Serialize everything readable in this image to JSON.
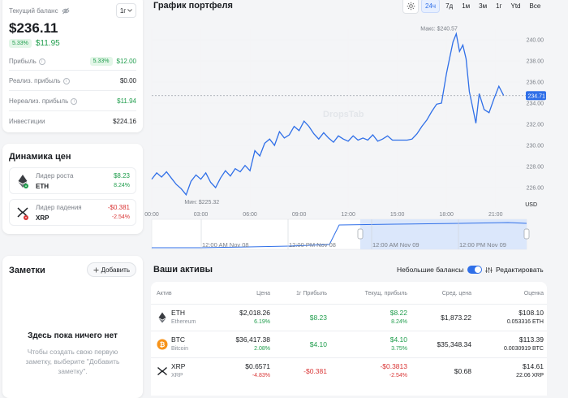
{
  "balance": {
    "label": "Текущий баланс",
    "period": "1г",
    "value": "$236.11",
    "change_pct": "5.33%",
    "change_abs": "$11.95",
    "rows": [
      {
        "label": "Прибыль",
        "pct": "5.33%",
        "value": "$12.00"
      },
      {
        "label": "Реализ. прибыль",
        "value": "$0.00"
      },
      {
        "label": "Нереализ. прибыль",
        "value": "$11.94"
      },
      {
        "label": "Инвестиции",
        "value": "$224.16"
      }
    ]
  },
  "dynamics": {
    "title": "Динамика цен",
    "gainer": {
      "label": "Лидер роста",
      "symbol": "ETH",
      "value": "$8.23",
      "pct": "8.24%"
    },
    "loser": {
      "label": "Лидер падения",
      "symbol": "XRP",
      "value": "-$0.381",
      "pct": "-2.54%"
    }
  },
  "notes": {
    "title": "Заметки",
    "add_label": "Добавить",
    "empty_title": "Здесь пока ничего нет",
    "empty_text": "Чтобы создать свою первую заметку, выберите \"Добавить заметку\"."
  },
  "chart": {
    "title": "График портфеля",
    "ranges": [
      "24ч",
      "7д",
      "1м",
      "3м",
      "1г",
      "Ytd",
      "Все"
    ],
    "active_range": "24ч",
    "max_label": "Макс: $240.57",
    "min_label": "Мин: $225.32",
    "current_label": "234.71",
    "watermark": "DropsTab",
    "unit": "USD",
    "nav_labels": [
      "12:00 AM Nov 08",
      "12:00 PM Nov 08",
      "12:00 AM Nov 09",
      "12:00 PM Nov 09"
    ]
  },
  "chart_data": {
    "type": "line",
    "title": "График портфеля",
    "ylabel": "USD",
    "ylim": [
      225,
      241
    ],
    "yticks": [
      "240.00",
      "238.00",
      "236.00",
      "234.00",
      "232.00",
      "230.00",
      "228.00",
      "226.00"
    ],
    "xticks": [
      "00:00",
      "03:00",
      "06:00",
      "09:00",
      "12:00",
      "15:00",
      "18:00",
      "21:00"
    ],
    "x_hours": [
      0,
      0.3,
      0.6,
      0.9,
      1.2,
      1.5,
      1.8,
      2.1,
      2.4,
      2.7,
      3.0,
      3.3,
      3.6,
      3.9,
      4.2,
      4.5,
      4.8,
      5.1,
      5.4,
      5.7,
      6.0,
      6.3,
      6.6,
      6.9,
      7.2,
      7.5,
      7.8,
      8.1,
      8.4,
      8.7,
      9.0,
      9.3,
      9.6,
      9.9,
      10.2,
      10.5,
      10.8,
      11.1,
      11.4,
      11.7,
      12.0,
      12.3,
      12.6,
      12.9,
      13.2,
      13.5,
      13.8,
      14.1,
      14.4,
      14.7,
      15.0,
      15.3,
      15.6,
      15.9,
      16.2,
      16.5,
      16.8,
      17.1,
      17.4,
      17.7,
      18.0,
      18.2,
      18.4,
      18.6,
      18.8,
      19.0,
      19.2,
      19.4,
      19.6,
      19.8,
      20.0,
      20.3,
      20.6,
      20.9,
      21.2,
      21.5
    ],
    "values": [
      226.8,
      227.4,
      227.0,
      227.5,
      226.9,
      226.3,
      225.9,
      225.32,
      226.6,
      227.2,
      226.8,
      227.4,
      226.5,
      226.0,
      226.9,
      227.6,
      227.1,
      227.8,
      227.5,
      228.1,
      227.6,
      229.5,
      229.0,
      230.2,
      230.6,
      230.0,
      231.3,
      230.7,
      231.0,
      231.8,
      231.4,
      232.3,
      231.8,
      231.1,
      230.6,
      231.2,
      230.7,
      230.3,
      230.9,
      230.6,
      230.4,
      230.9,
      230.5,
      230.7,
      230.5,
      231.0,
      230.4,
      230.6,
      230.9,
      230.5,
      230.5,
      230.5,
      230.5,
      230.6,
      231.1,
      231.8,
      232.4,
      233.2,
      233.9,
      234.0,
      236.8,
      238.3,
      239.8,
      240.57,
      238.9,
      239.5,
      238.2,
      235.1,
      233.6,
      232.1,
      234.9,
      233.4,
      233.1,
      234.4,
      235.6,
      234.71
    ]
  },
  "assets": {
    "title": "Ваши активы",
    "small_balances_label": "Небольшие балансы",
    "edit_label": "Редактировать",
    "columns": [
      "Актив",
      "Цена",
      "1г Прибыль",
      "Текущ. прибыль",
      "Сред. цена",
      "Оценка"
    ],
    "rows": [
      {
        "symbol": "ETH",
        "name": "Ethereum",
        "price": "$2,018.26",
        "price_pct": "6.19%",
        "profit_1y": "$8.23",
        "cur_profit": "$8.22",
        "cur_profit_pct": "8.24%",
        "avg_price": "$1,873.22",
        "value": "$108.10",
        "amount": "0.053316 ETH"
      },
      {
        "symbol": "BTC",
        "name": "Bitcoin",
        "price": "$36,417.38",
        "price_pct": "2.08%",
        "profit_1y": "$4.10",
        "cur_profit": "$4.10",
        "cur_profit_pct": "3.75%",
        "avg_price": "$35,348.34",
        "value": "$113.39",
        "amount": "0.0030919 BTC"
      },
      {
        "symbol": "XRP",
        "name": "XRP",
        "price": "$0.6571",
        "price_pct": "-4.83%",
        "profit_1y": "-$0.381",
        "cur_profit": "-$0.3813",
        "cur_profit_pct": "-2.54%",
        "avg_price": "$0.68",
        "value": "$14.61",
        "amount": "22.06 XRP"
      }
    ]
  }
}
